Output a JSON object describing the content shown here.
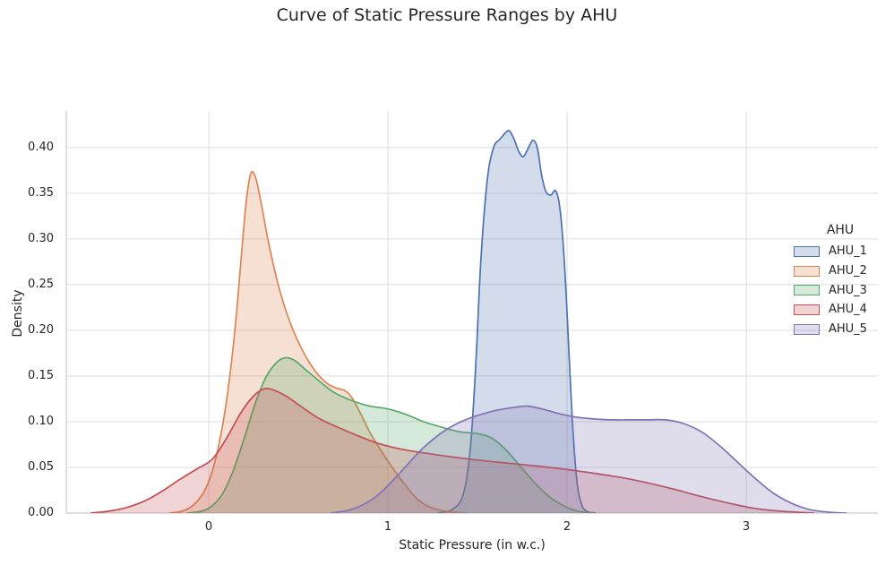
{
  "chart_data": {
    "type": "area",
    "variant": "kde-density-curves",
    "title": "Curve of Static Pressure Ranges by AHU",
    "xlabel": "Static Pressure (in w.c.)",
    "ylabel": "Density",
    "xlim": [
      -0.795,
      3.735
    ],
    "ylim": [
      0,
      0.44
    ],
    "grid": true,
    "grid_color": "#dcdcdc",
    "spine_color": "#cccccc",
    "text_color": "#262626",
    "fill_opacity": 0.25,
    "xticks": [
      {
        "v": 0,
        "label": "0"
      },
      {
        "v": 1,
        "label": "1"
      },
      {
        "v": 2,
        "label": "2"
      },
      {
        "v": 3,
        "label": "3"
      }
    ],
    "yticks": [
      {
        "v": 0.0,
        "label": "0.00"
      },
      {
        "v": 0.05,
        "label": "0.05"
      },
      {
        "v": 0.1,
        "label": "0.10"
      },
      {
        "v": 0.15,
        "label": "0.15"
      },
      {
        "v": 0.2,
        "label": "0.20"
      },
      {
        "v": 0.25,
        "label": "0.25"
      },
      {
        "v": 0.3,
        "label": "0.30"
      },
      {
        "v": 0.35,
        "label": "0.35"
      },
      {
        "v": 0.4,
        "label": "0.40"
      }
    ],
    "legend": {
      "title": "AHU",
      "position": "right",
      "frame": false
    },
    "series": [
      {
        "name": "AHU_1",
        "color": "#4c72b0",
        "peak": {
          "x": 1.68,
          "density": 0.418
        },
        "points": [
          [
            1.28,
            0
          ],
          [
            1.36,
            0.004
          ],
          [
            1.42,
            0.02
          ],
          [
            1.46,
            0.07
          ],
          [
            1.49,
            0.16
          ],
          [
            1.52,
            0.28
          ],
          [
            1.555,
            0.365
          ],
          [
            1.59,
            0.4
          ],
          [
            1.625,
            0.409
          ],
          [
            1.66,
            0.417
          ],
          [
            1.68,
            0.418
          ],
          [
            1.705,
            0.409
          ],
          [
            1.73,
            0.396
          ],
          [
            1.755,
            0.39
          ],
          [
            1.78,
            0.398
          ],
          [
            1.81,
            0.408
          ],
          [
            1.835,
            0.399
          ],
          [
            1.858,
            0.37
          ],
          [
            1.882,
            0.352
          ],
          [
            1.91,
            0.348
          ],
          [
            1.935,
            0.353
          ],
          [
            1.957,
            0.338
          ],
          [
            1.977,
            0.298
          ],
          [
            1.997,
            0.232
          ],
          [
            2.017,
            0.15
          ],
          [
            2.037,
            0.078
          ],
          [
            2.058,
            0.03
          ],
          [
            2.082,
            0.009
          ],
          [
            2.11,
            0.002
          ],
          [
            2.16,
            0
          ]
        ]
      },
      {
        "name": "AHU_2",
        "color": "#dd8452",
        "peak": {
          "x": 0.235,
          "density": 0.372
        },
        "points": [
          [
            -0.22,
            0
          ],
          [
            -0.15,
            0.002
          ],
          [
            -0.09,
            0.008
          ],
          [
            -0.03,
            0.022
          ],
          [
            0.02,
            0.046
          ],
          [
            0.07,
            0.088
          ],
          [
            0.11,
            0.138
          ],
          [
            0.15,
            0.208
          ],
          [
            0.185,
            0.288
          ],
          [
            0.21,
            0.342
          ],
          [
            0.235,
            0.372
          ],
          [
            0.262,
            0.367
          ],
          [
            0.29,
            0.342
          ],
          [
            0.33,
            0.3
          ],
          [
            0.38,
            0.256
          ],
          [
            0.43,
            0.222
          ],
          [
            0.48,
            0.196
          ],
          [
            0.54,
            0.172
          ],
          [
            0.6,
            0.154
          ],
          [
            0.66,
            0.142
          ],
          [
            0.71,
            0.137
          ],
          [
            0.76,
            0.134
          ],
          [
            0.8,
            0.126
          ],
          [
            0.85,
            0.108
          ],
          [
            0.9,
            0.088
          ],
          [
            0.95,
            0.072
          ],
          [
            1.0,
            0.057
          ],
          [
            1.05,
            0.043
          ],
          [
            1.1,
            0.03
          ],
          [
            1.16,
            0.016
          ],
          [
            1.23,
            0.007
          ],
          [
            1.32,
            0.002
          ],
          [
            1.44,
            0
          ]
        ]
      },
      {
        "name": "AHU_3",
        "color": "#55a868",
        "peak": {
          "x": 0.43,
          "density": 0.17
        },
        "points": [
          [
            -0.12,
            0
          ],
          [
            -0.04,
            0.002
          ],
          [
            0.02,
            0.008
          ],
          [
            0.08,
            0.022
          ],
          [
            0.14,
            0.048
          ],
          [
            0.2,
            0.083
          ],
          [
            0.26,
            0.12
          ],
          [
            0.32,
            0.149
          ],
          [
            0.38,
            0.165
          ],
          [
            0.43,
            0.17
          ],
          [
            0.48,
            0.167
          ],
          [
            0.54,
            0.157
          ],
          [
            0.62,
            0.144
          ],
          [
            0.7,
            0.132
          ],
          [
            0.8,
            0.123
          ],
          [
            0.9,
            0.117
          ],
          [
            1.0,
            0.114
          ],
          [
            1.1,
            0.108
          ],
          [
            1.2,
            0.1
          ],
          [
            1.3,
            0.094
          ],
          [
            1.4,
            0.089
          ],
          [
            1.5,
            0.087
          ],
          [
            1.58,
            0.082
          ],
          [
            1.66,
            0.069
          ],
          [
            1.74,
            0.051
          ],
          [
            1.82,
            0.033
          ],
          [
            1.9,
            0.018
          ],
          [
            1.98,
            0.008
          ],
          [
            2.06,
            0.002
          ],
          [
            2.15,
            0
          ]
        ]
      },
      {
        "name": "AHU_4",
        "color": "#c44e52",
        "peak": {
          "x": 0.31,
          "density": 0.136
        },
        "points": [
          [
            -0.66,
            0
          ],
          [
            -0.56,
            0.002
          ],
          [
            -0.46,
            0.006
          ],
          [
            -0.36,
            0.013
          ],
          [
            -0.26,
            0.024
          ],
          [
            -0.16,
            0.037
          ],
          [
            -0.06,
            0.049
          ],
          [
            0.02,
            0.059
          ],
          [
            0.1,
            0.082
          ],
          [
            0.18,
            0.11
          ],
          [
            0.25,
            0.128
          ],
          [
            0.31,
            0.136
          ],
          [
            0.37,
            0.134
          ],
          [
            0.44,
            0.127
          ],
          [
            0.52,
            0.116
          ],
          [
            0.62,
            0.103
          ],
          [
            0.72,
            0.094
          ],
          [
            0.84,
            0.084
          ],
          [
            0.95,
            0.076
          ],
          [
            1.1,
            0.069
          ],
          [
            1.3,
            0.063
          ],
          [
            1.5,
            0.058
          ],
          [
            1.7,
            0.054
          ],
          [
            1.9,
            0.05
          ],
          [
            2.1,
            0.045
          ],
          [
            2.3,
            0.039
          ],
          [
            2.45,
            0.033
          ],
          [
            2.6,
            0.026
          ],
          [
            2.75,
            0.018
          ],
          [
            2.9,
            0.011
          ],
          [
            3.05,
            0.005
          ],
          [
            3.2,
            0.002
          ],
          [
            3.38,
            0
          ]
        ]
      },
      {
        "name": "AHU_5",
        "color": "#8172b3",
        "peak": {
          "x": 1.78,
          "density": 0.117
        },
        "points": [
          [
            0.68,
            0
          ],
          [
            0.78,
            0.003
          ],
          [
            0.86,
            0.009
          ],
          [
            0.94,
            0.019
          ],
          [
            1.02,
            0.034
          ],
          [
            1.1,
            0.051
          ],
          [
            1.18,
            0.068
          ],
          [
            1.26,
            0.082
          ],
          [
            1.34,
            0.093
          ],
          [
            1.42,
            0.101
          ],
          [
            1.52,
            0.108
          ],
          [
            1.62,
            0.113
          ],
          [
            1.72,
            0.116
          ],
          [
            1.78,
            0.117
          ],
          [
            1.86,
            0.114
          ],
          [
            1.95,
            0.109
          ],
          [
            2.05,
            0.105
          ],
          [
            2.15,
            0.103
          ],
          [
            2.25,
            0.102
          ],
          [
            2.35,
            0.102
          ],
          [
            2.45,
            0.102
          ],
          [
            2.55,
            0.102
          ],
          [
            2.65,
            0.098
          ],
          [
            2.75,
            0.089
          ],
          [
            2.85,
            0.074
          ],
          [
            2.95,
            0.056
          ],
          [
            3.05,
            0.038
          ],
          [
            3.15,
            0.022
          ],
          [
            3.25,
            0.011
          ],
          [
            3.35,
            0.004
          ],
          [
            3.46,
            0.001
          ],
          [
            3.56,
            0
          ]
        ]
      }
    ]
  }
}
